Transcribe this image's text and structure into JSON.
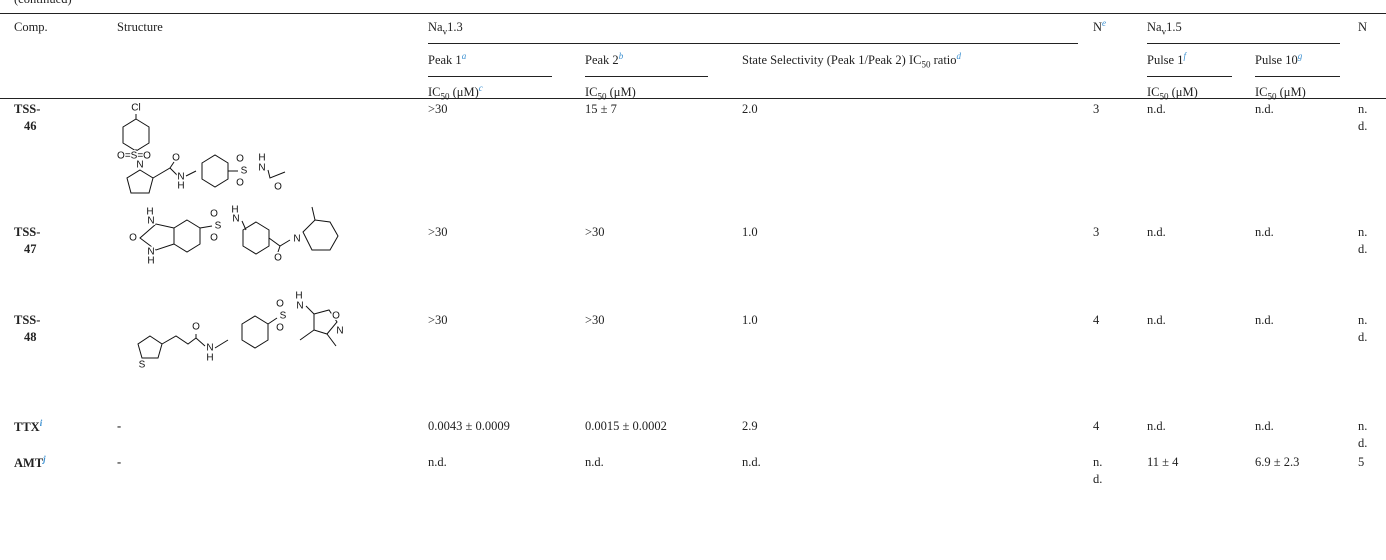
{
  "caption": "(continued)",
  "header": {
    "comp": "Comp.",
    "structure": "Structure",
    "nav13": [
      "Na",
      "v",
      "1.3"
    ],
    "ne": [
      "N",
      "e"
    ],
    "nav15": [
      "Na",
      "v",
      "1.5"
    ],
    "n": "N",
    "peak1": [
      "Peak 1",
      "a"
    ],
    "peak2": [
      "Peak 2",
      "b"
    ],
    "state": [
      "State Selectivity (Peak 1/Peak 2) IC",
      "50",
      " ratio",
      "d"
    ],
    "pulse1": [
      "Pulse 1",
      "f"
    ],
    "pulse10": [
      "Pulse 10",
      "g"
    ],
    "ic50_peak1": [
      "IC",
      "50",
      " (μM)",
      "c"
    ],
    "ic50_peak2": [
      "IC",
      "50",
      " (μM)"
    ],
    "ic50_pulse1": [
      "IC",
      "50",
      " (μM)"
    ],
    "ic50_pulse10": [
      "IC",
      "50",
      " (μM)"
    ]
  },
  "rows": [
    {
      "comp": [
        "TSS-46"
      ],
      "atoms": [
        "Cl",
        "O=S=O",
        "N",
        "O",
        "N",
        "H",
        "S",
        "O",
        "O",
        "N",
        "H",
        "O"
      ],
      "peak1": ">30",
      "peak2": "15 ± 7",
      "ratio": "2.0",
      "ne": "3",
      "pulse1": "n.d.",
      "pulse10": "n.d.",
      "n": "n. d."
    },
    {
      "comp": [
        "TSS-47"
      ],
      "atoms": [
        "H",
        "N",
        "O",
        "N",
        "H",
        "S",
        "O",
        "O",
        "N",
        "H",
        "N",
        "O"
      ],
      "peak1": ">30",
      "peak2": ">30",
      "ratio": "1.0",
      "ne": "3",
      "pulse1": "n.d.",
      "pulse10": "n.d.",
      "n": "n. d."
    },
    {
      "comp": [
        "TSS-48"
      ],
      "atoms": [
        "S",
        "O",
        "N",
        "H",
        "S",
        "O",
        "O",
        "N",
        "H",
        "O",
        "N"
      ],
      "peak1": ">30",
      "peak2": ">30",
      "ratio": "1.0",
      "ne": "4",
      "pulse1": "n.d.",
      "pulse10": "n.d.",
      "n": "n. d."
    },
    {
      "comp": [
        "TTX",
        "i"
      ],
      "structure": "-",
      "peak1": "0.0043 ± 0.0009",
      "peak2": "0.0015 ± 0.0002",
      "ratio": "2.9",
      "ne": "4",
      "pulse1": "n.d.",
      "pulse10": "n.d.",
      "n": "n. d."
    },
    {
      "comp": [
        "AMT",
        "j"
      ],
      "structure": "-",
      "peak1": "n.d.",
      "peak2": "n.d.",
      "ratio": "n.d.",
      "ne": "n. d.",
      "pulse1": "11 ± 4",
      "pulse10": "6.9 ± 2.3",
      "n": "5"
    }
  ]
}
